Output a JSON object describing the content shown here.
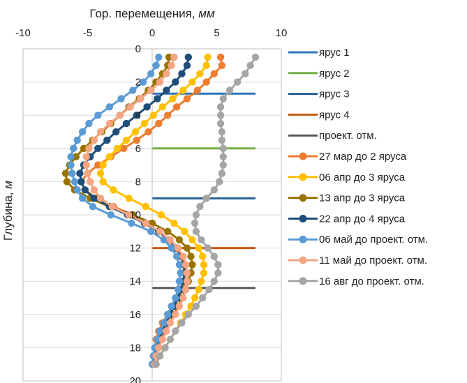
{
  "chart_data": {
    "type": "line",
    "x_axis_title_main": "Гор. перемещения, ",
    "x_axis_title_unit": "мм",
    "y_axis_title_main": "Глубина, ",
    "y_axis_title_unit": "м",
    "xlim": [
      -10,
      10
    ],
    "ylim": [
      0,
      20
    ],
    "x_ticks": [
      -10,
      -5,
      0,
      5,
      10
    ],
    "y_ticks": [
      0,
      2,
      4,
      6,
      8,
      10,
      12,
      14,
      16,
      18,
      20
    ],
    "y_reversed": true,
    "grid": {
      "horizontal": true,
      "vertical": false
    },
    "legend_position": "right",
    "reference_lines": [
      {
        "name": "ярус 1",
        "color": "#2E75B6",
        "y": 2.7,
        "x_start": 0,
        "x_end": 8
      },
      {
        "name": "ярус 2",
        "color": "#70AD47",
        "y": 6.0,
        "x_start": 0,
        "x_end": 8
      },
      {
        "name": "ярус 3",
        "color": "#255E91",
        "y": 9.0,
        "x_start": 0,
        "x_end": 8
      },
      {
        "name": "ярус 4",
        "color": "#C55A11",
        "y": 12.0,
        "x_start": 0,
        "x_end": 8
      },
      {
        "name": "проект. отм.",
        "color": "#595959",
        "y": 14.4,
        "x_start": 0,
        "x_end": 8
      }
    ],
    "depths": [
      0.5,
      1.0,
      1.5,
      2.0,
      2.5,
      3.0,
      3.5,
      4.0,
      4.5,
      5.0,
      5.5,
      6.0,
      6.5,
      7.0,
      7.5,
      8.0,
      8.5,
      9.0,
      9.5,
      10.0,
      10.5,
      11.0,
      11.5,
      12.0,
      12.5,
      13.0,
      13.5,
      14.0,
      14.5,
      15.0,
      15.5,
      16.0,
      16.5,
      17.0,
      17.5,
      18.0,
      18.5,
      19.0
    ],
    "series": [
      {
        "name": "27 мар до 2 яруса",
        "color": "#ED7D31",
        "x": [
          5.3,
          5.4,
          4.8,
          4.2,
          3.5,
          2.7,
          1.9,
          1.2,
          0.5,
          -0.3,
          -1.2,
          -2.2,
          -3.2,
          -4.2,
          -5.0,
          -5.5,
          -5.2,
          -4.3,
          -3.0,
          -1.5,
          -0.5,
          0.5,
          1.2,
          1.8,
          2.2,
          2.4,
          2.5,
          2.5,
          2.4,
          2.0,
          1.6,
          1.2,
          0.8,
          0.5,
          0.3,
          0.2,
          0.1,
          0.0
        ]
      },
      {
        "name": "06 апр до 3 яруса",
        "color": "#FFC000",
        "x": [
          4.3,
          4.2,
          3.7,
          3.1,
          2.4,
          1.6,
          0.8,
          0.1,
          -0.6,
          -1.3,
          -2.0,
          -2.7,
          -3.3,
          -3.8,
          -4.0,
          -3.8,
          -3.0,
          -1.8,
          -0.5,
          0.7,
          1.7,
          2.5,
          3.1,
          3.6,
          3.9,
          4.0,
          4.0,
          3.8,
          3.6,
          3.3,
          3.0,
          2.6,
          2.2,
          1.8,
          1.4,
          1.0,
          0.6,
          0.3
        ]
      },
      {
        "name": "13 апр до 3 яруса",
        "color": "#997300",
        "x": [
          1.3,
          1.2,
          0.8,
          0.3,
          -0.3,
          -1.0,
          -1.8,
          -2.5,
          -3.2,
          -3.9,
          -4.6,
          -5.3,
          -5.9,
          -6.4,
          -6.7,
          -6.6,
          -6.0,
          -4.8,
          -3.3,
          -1.5,
          0.0,
          1.2,
          2.1,
          2.7,
          3.0,
          3.1,
          3.0,
          2.8,
          2.6,
          2.3,
          2.0,
          1.7,
          1.3,
          1.0,
          0.7,
          0.5,
          0.3,
          0.2
        ]
      },
      {
        "name": "22 апр до 4 яруса",
        "color": "#1F4E79",
        "x": [
          2.8,
          2.7,
          2.3,
          1.8,
          1.1,
          0.4,
          -0.4,
          -1.2,
          -2.0,
          -2.8,
          -3.5,
          -4.2,
          -4.8,
          -5.3,
          -5.6,
          -5.5,
          -5.2,
          -4.5,
          -3.3,
          -1.9,
          -0.6,
          0.5,
          1.3,
          1.9,
          2.3,
          2.5,
          2.5,
          2.4,
          2.2,
          2.0,
          1.7,
          1.4,
          1.1,
          0.8,
          0.5,
          0.3,
          0.2,
          0.1
        ]
      },
      {
        "name": "06 май до проект. отм.",
        "color": "#5B9BD5",
        "x": [
          0.5,
          0.3,
          -0.1,
          -0.7,
          -1.5,
          -2.4,
          -3.3,
          -4.2,
          -4.9,
          -5.4,
          -5.8,
          -6.1,
          -6.3,
          -6.3,
          -6.2,
          -6.0,
          -5.8,
          -5.4,
          -4.6,
          -3.2,
          -1.6,
          -0.1,
          0.9,
          1.5,
          1.9,
          2.1,
          2.2,
          2.1,
          2.0,
          1.8,
          1.5,
          1.2,
          0.9,
          0.6,
          0.4,
          0.2,
          0.1,
          0.0
        ]
      },
      {
        "name": "11 май до проект. отм.",
        "color": "#F4A582",
        "x": [
          1.7,
          1.5,
          1.1,
          0.6,
          -0.1,
          -0.9,
          -1.7,
          -2.5,
          -3.3,
          -4.0,
          -4.5,
          -4.9,
          -5.1,
          -5.1,
          -5.0,
          -4.8,
          -4.5,
          -4.0,
          -3.1,
          -1.8,
          -0.5,
          0.6,
          1.4,
          2.0,
          2.4,
          2.6,
          2.7,
          2.7,
          2.6,
          2.4,
          2.1,
          1.8,
          1.4,
          1.1,
          0.8,
          0.5,
          0.3,
          0.2
        ]
      },
      {
        "name": "16 авг до проект. отм.",
        "color": "#A5A5A5",
        "x": [
          8.0,
          7.6,
          7.2,
          6.6,
          6.0,
          5.5,
          5.3,
          5.3,
          5.3,
          5.4,
          5.4,
          5.5,
          5.5,
          5.5,
          5.4,
          5.2,
          4.8,
          4.2,
          3.7,
          3.4,
          3.3,
          3.4,
          3.8,
          4.3,
          4.8,
          5.1,
          5.1,
          4.8,
          4.4,
          3.9,
          3.4,
          2.8,
          2.3,
          1.8,
          1.4,
          1.0,
          0.6,
          0.3
        ]
      }
    ]
  }
}
